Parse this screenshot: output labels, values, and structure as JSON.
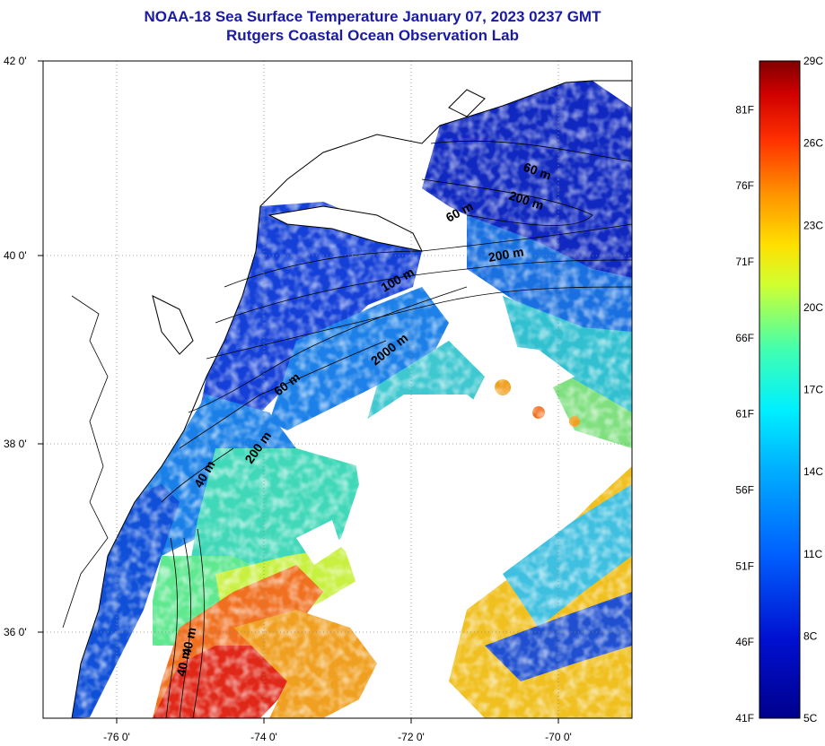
{
  "title": {
    "line1": "NOAA-18 Sea Surface Temperature January 07, 2023 0237 GMT",
    "line2": "Rutgers Coastal Ocean Observation Lab"
  },
  "map": {
    "lon_ticks": [
      "-76 0'",
      "-74 0'",
      "-72 0'",
      "-70 0'"
    ],
    "lat_ticks": [
      "42 0'",
      "40 0'",
      "38 0'",
      "36 0'"
    ],
    "contour_labels": [
      "60 m",
      "200 m",
      "60 m",
      "200 m",
      "100 m",
      "2000 m",
      "60 m",
      "200 m",
      "40 m",
      "40 m",
      "40 m"
    ],
    "colors": {
      "land": "#ffffff",
      "coastline": "#000000",
      "cold": "#1030c0",
      "cool": "#20a0e0",
      "mild": "#40e0b0",
      "warm": "#f0e040",
      "hot": "#f05010",
      "very_hot": "#d01010"
    }
  },
  "colorbar": {
    "celsius": [
      "29C",
      "26C",
      "23C",
      "20C",
      "17C",
      "14C",
      "11C",
      "8C",
      "5C"
    ],
    "fahrenheit": [
      "81F",
      "76F",
      "71F",
      "66F",
      "61F",
      "56F",
      "51F",
      "46F",
      "41F"
    ],
    "range_c": [
      5,
      29
    ],
    "range_f": [
      41,
      84.2
    ]
  }
}
